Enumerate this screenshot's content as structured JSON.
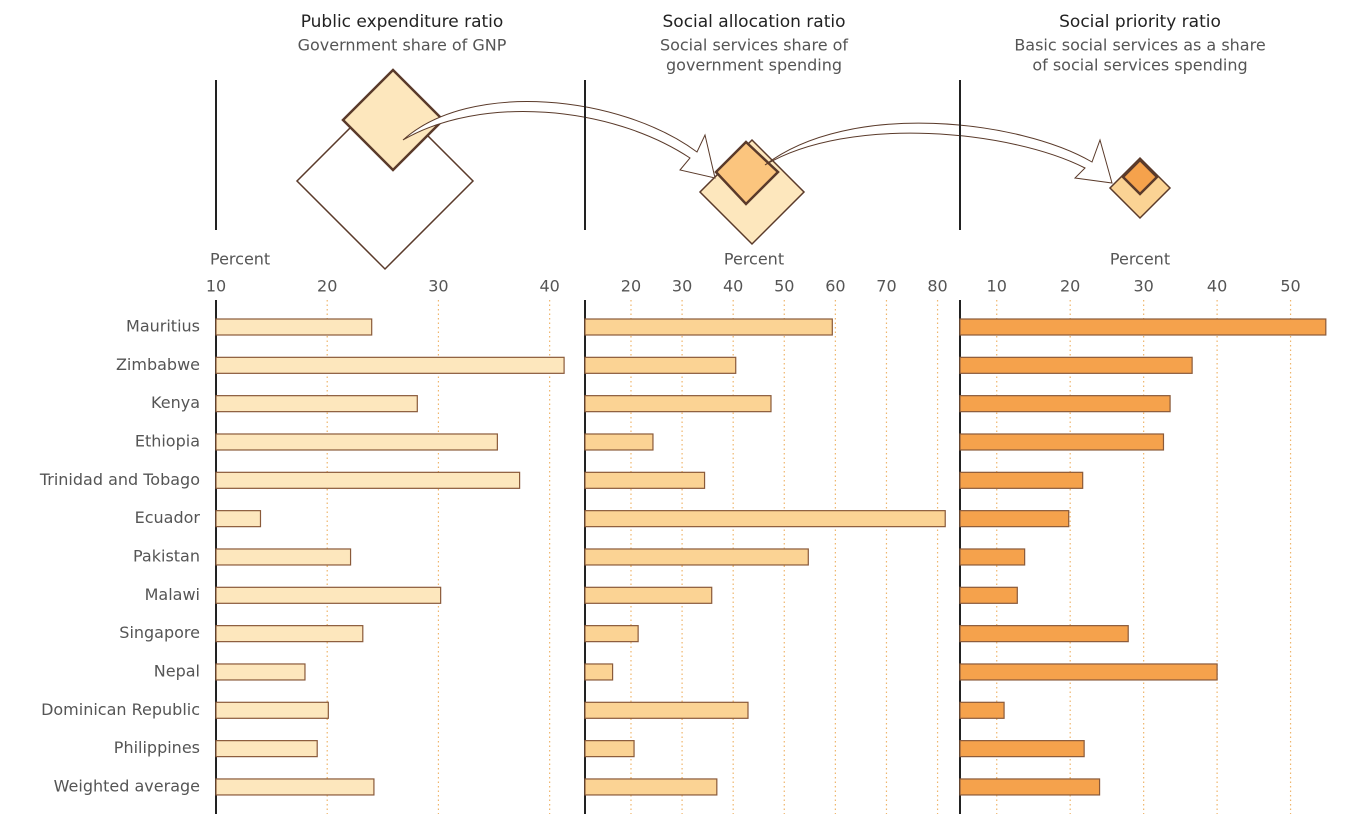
{
  "chart_data": [
    {
      "type": "bar",
      "title": "Public expenditure ratio",
      "subtitle": [
        "Government share of GNP"
      ],
      "x_label": "Percent",
      "categories": [
        "Mauritius",
        "Zimbabwe",
        "Kenya",
        "Ethiopia",
        "Trinidad and Tobago",
        "Ecuador",
        "Pakistan",
        "Malawi",
        "Singapore",
        "Nepal",
        "Dominican Republic",
        "Philippines",
        "Weighted average"
      ],
      "values": [
        24,
        41.3,
        28.1,
        35.3,
        37.3,
        14,
        22.1,
        30.2,
        23.2,
        18,
        20.1,
        19.1,
        24.2
      ],
      "color": "#fde7bd",
      "xlim": [
        10,
        43
      ],
      "xticks": [
        10,
        20,
        30,
        40
      ],
      "grid": true
    },
    {
      "type": "bar",
      "title": "Social allocation ratio",
      "subtitle": [
        "Social services share of",
        "government spending"
      ],
      "x_label": "Percent",
      "values": [
        59.4,
        40.5,
        47.4,
        24.3,
        34.4,
        81.5,
        54.7,
        35.8,
        21.4,
        16.4,
        42.9,
        20.6,
        36.8
      ],
      "color": "#fbd394",
      "xlim": [
        11,
        84
      ],
      "xticks": [
        20,
        30,
        40,
        50,
        60,
        70,
        80
      ],
      "grid": true
    },
    {
      "type": "bar",
      "title": "Social priority ratio",
      "subtitle": [
        "Basic social services as a share",
        "of social services spending"
      ],
      "x_label": "Percent",
      "values": [
        54.8,
        36.6,
        33.6,
        32.7,
        21.7,
        19.8,
        13.8,
        12.8,
        27.9,
        40,
        11,
        21.9,
        24
      ],
      "color": "#f5a24c",
      "xlim": [
        5,
        58.5
      ],
      "xticks": [
        10,
        20,
        30,
        40,
        50
      ],
      "grid": true
    }
  ]
}
